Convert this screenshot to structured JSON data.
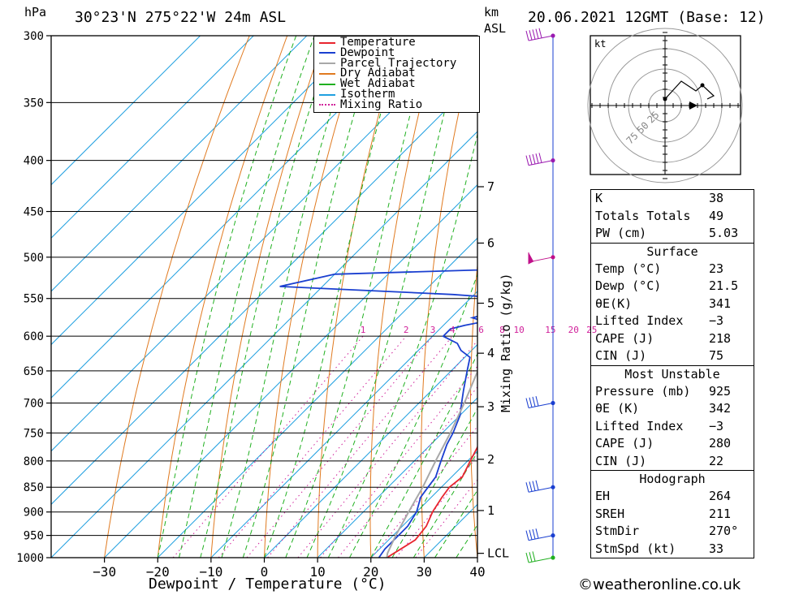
{
  "header": {
    "pressure_unit": "hPa",
    "location": "30°23'N  275°22'W  24m  ASL",
    "km_label": "km",
    "asl_label": "ASL",
    "datetime": "20.06.2021  12GMT  (Base: 12)"
  },
  "legend": {
    "items": [
      {
        "label": "Temperature",
        "color": "#e8252e",
        "style": "solid"
      },
      {
        "label": "Dewpoint",
        "color": "#1a3fd0",
        "style": "solid"
      },
      {
        "label": "Parcel Trajectory",
        "color": "#a8a8a8",
        "style": "solid"
      },
      {
        "label": "Dry Adiabat",
        "color": "#e07a20",
        "style": "solid"
      },
      {
        "label": "Wet Adiabat",
        "color": "#20b020",
        "style": "solid"
      },
      {
        "label": "Isotherm",
        "color": "#20a0e0",
        "style": "solid"
      },
      {
        "label": "Mixing Ratio",
        "color": "#d0209a",
        "style": "dotted"
      }
    ]
  },
  "chart_data": {
    "type": "line",
    "title": "",
    "xlabel": "Dewpoint / Temperature (°C)",
    "ylabel": "hPa",
    "y2label": "Mixing Ratio (g/kg)",
    "x_ticks": [
      "−30",
      "−20",
      "−10",
      "0",
      "10",
      "20",
      "30",
      "40"
    ],
    "x_tick_values": [
      -30,
      -20,
      -10,
      0,
      10,
      20,
      30,
      40
    ],
    "xlim": [
      -40,
      40
    ],
    "pressure_levels": [
      300,
      350,
      400,
      450,
      500,
      550,
      600,
      650,
      700,
      750,
      800,
      850,
      900,
      950,
      1000
    ],
    "ylim": [
      1000,
      300
    ],
    "y_scale": "log",
    "skew": "isotherms slanted 45° to the right",
    "km_ticks": [
      {
        "label": "7",
        "p": 425
      },
      {
        "label": "6",
        "p": 484
      },
      {
        "label": "5",
        "p": 556
      },
      {
        "label": "4",
        "p": 624
      },
      {
        "label": "3",
        "p": 706
      },
      {
        "label": "2",
        "p": 797
      },
      {
        "label": "1",
        "p": 897
      },
      {
        "label": "LCL",
        "p": 990
      }
    ],
    "mixing_ratio_labels": [
      "1",
      "2",
      "3",
      "4",
      "6",
      "8",
      "10",
      "15",
      "20",
      "25"
    ],
    "mixing_ratio_values": [
      1,
      2,
      3,
      4,
      6,
      8,
      10,
      15,
      20,
      25
    ],
    "series": [
      {
        "name": "Temperature",
        "color": "#e8252e",
        "points": [
          [
            1000,
            23
          ],
          [
            980,
            24
          ],
          [
            960,
            25
          ],
          [
            930,
            24.5
          ],
          [
            900,
            23
          ],
          [
            870,
            22
          ],
          [
            850,
            21.5
          ],
          [
            830,
            22
          ],
          [
            800,
            20.5
          ],
          [
            770,
            19
          ],
          [
            750,
            17.5
          ],
          [
            720,
            16
          ],
          [
            700,
            14
          ],
          [
            680,
            12.5
          ],
          [
            650,
            10.5
          ],
          [
            620,
            9
          ],
          [
            600,
            7.5
          ],
          [
            580,
            5.5
          ],
          [
            560,
            4
          ],
          [
            540,
            2.5
          ],
          [
            520,
            0.5
          ],
          [
            500,
            -2.5
          ],
          [
            480,
            -3.5
          ],
          [
            460,
            -6.5
          ],
          [
            450,
            -8
          ],
          [
            400,
            -14
          ],
          [
            350,
            -21
          ],
          [
            300,
            -30
          ]
        ]
      },
      {
        "name": "Dewpoint",
        "color": "#1a3fd0",
        "points": [
          [
            1000,
            21.5
          ],
          [
            980,
            21
          ],
          [
            960,
            21
          ],
          [
            930,
            21
          ],
          [
            900,
            20
          ],
          [
            870,
            18
          ],
          [
            850,
            17.5
          ],
          [
            830,
            17
          ],
          [
            800,
            15
          ],
          [
            770,
            13
          ],
          [
            750,
            12
          ],
          [
            720,
            10
          ],
          [
            700,
            8
          ],
          [
            680,
            6
          ],
          [
            650,
            3
          ],
          [
            630,
            1
          ],
          [
            620,
            -2
          ],
          [
            610,
            -4
          ],
          [
            600,
            -8
          ],
          [
            590,
            -8
          ],
          [
            585,
            -6
          ],
          [
            580,
            -3
          ],
          [
            575,
            -6
          ],
          [
            570,
            -4
          ],
          [
            560,
            -3
          ],
          [
            550,
            -3
          ],
          [
            545,
            -14
          ],
          [
            535,
            -48
          ],
          [
            520,
            -40
          ],
          [
            515,
            -14
          ],
          [
            500,
            -10
          ],
          [
            480,
            -12
          ],
          [
            470,
            -11
          ],
          [
            450,
            -15
          ],
          [
            400,
            -24
          ],
          [
            350,
            -32
          ],
          [
            300,
            -45
          ]
        ]
      },
      {
        "name": "Parcel Trajectory",
        "color": "#a8a8a8",
        "points": [
          [
            1000,
            23
          ],
          [
            990,
            22.3
          ],
          [
            950,
            20.5
          ],
          [
            900,
            18.5
          ],
          [
            850,
            16.5
          ],
          [
            800,
            14
          ],
          [
            750,
            11.5
          ],
          [
            700,
            8.5
          ],
          [
            650,
            5
          ],
          [
            600,
            1.5
          ],
          [
            550,
            -2.5
          ],
          [
            500,
            -7
          ],
          [
            450,
            -12.5
          ],
          [
            400,
            -19
          ],
          [
            350,
            -27
          ],
          [
            300,
            -36
          ]
        ]
      }
    ]
  },
  "hodograph": {
    "unit_label": "kt",
    "ring_labels": [
      "25",
      "50",
      "75"
    ]
  },
  "indices": {
    "top": [
      {
        "label": "K",
        "value": "38"
      },
      {
        "label": "Totals Totals",
        "value": "49"
      },
      {
        "label": "PW (cm)",
        "value": "5.03"
      }
    ],
    "surface": {
      "title": "Surface",
      "rows": [
        {
          "label": "Temp (°C)",
          "value": "23"
        },
        {
          "label": "Dewp (°C)",
          "value": "21.5"
        },
        {
          "label": "θE(K)",
          "value": "341"
        },
        {
          "label": "Lifted Index",
          "value": "−3"
        },
        {
          "label": "CAPE (J)",
          "value": "218"
        },
        {
          "label": "CIN (J)",
          "value": "75"
        }
      ]
    },
    "most_unstable": {
      "title": "Most Unstable",
      "rows": [
        {
          "label": "Pressure (mb)",
          "value": "925"
        },
        {
          "label": "θE (K)",
          "value": "342"
        },
        {
          "label": "Lifted Index",
          "value": "−3"
        },
        {
          "label": "CAPE (J)",
          "value": "280"
        },
        {
          "label": "CIN (J)",
          "value": "22"
        }
      ]
    },
    "hodograph": {
      "title": "Hodograph",
      "rows": [
        {
          "label": "EH",
          "value": "264"
        },
        {
          "label": "SREH",
          "value": "211"
        },
        {
          "label": "StmDir",
          "value": "270°"
        },
        {
          "label": "StmSpd (kt)",
          "value": "33"
        }
      ]
    }
  },
  "footer": {
    "copyright": "©weatheronline.co.uk"
  }
}
